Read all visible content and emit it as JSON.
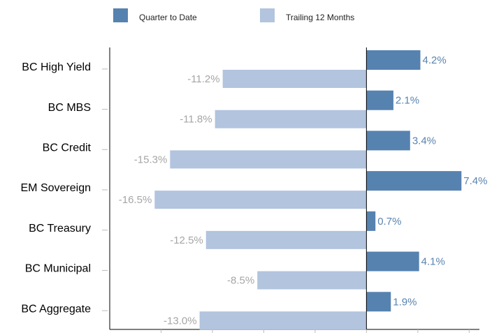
{
  "chart_data": {
    "type": "hbar",
    "categories": [
      "BC High Yield",
      "BC MBS",
      "BC Credit",
      "EM Sovereign",
      "BC Treasury",
      "BC Municipal",
      "BC Aggregate"
    ],
    "series": [
      {
        "name": "Quarter to Date",
        "color": "#5682b0",
        "label_color": "#5a84b0",
        "values": [
          4.2,
          2.1,
          3.4,
          7.4,
          0.7,
          4.1,
          1.9
        ],
        "value_labels": [
          "4.2%",
          "2.1%",
          "3.4%",
          "7.4%",
          "0.7%",
          "4.1%",
          "1.9%"
        ]
      },
      {
        "name": "Trailing 12 Months",
        "color": "#b2c4de",
        "label_color": "#a6a6a6",
        "values": [
          -11.2,
          -11.8,
          -15.3,
          -16.5,
          -12.5,
          -8.5,
          -13.0
        ],
        "value_labels": [
          "-11.2%",
          "-11.8%",
          "-15.3%",
          "-16.5%",
          "-12.5%",
          "-8.5%",
          "-13.0%"
        ]
      }
    ],
    "xlim": [
      -20,
      8.8
    ],
    "xticks": [
      -16,
      -12,
      -8,
      -4,
      0,
      4,
      8
    ],
    "legend": "top"
  }
}
